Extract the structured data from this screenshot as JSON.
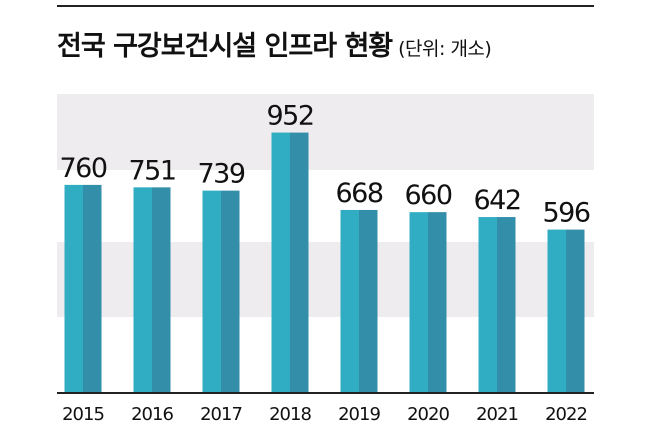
{
  "title": "전국 구강보건시설 인프라 현황",
  "unit": "(단위: 개소)",
  "colors": {
    "bar_left": "#31adc3",
    "bar_right": "#328ea9",
    "band": "#eeecee",
    "axis": "#222222"
  },
  "chart_data": {
    "type": "bar",
    "categories": [
      "2015",
      "2016",
      "2017",
      "2018",
      "2019",
      "2020",
      "2021",
      "2022"
    ],
    "values": [
      760,
      751,
      739,
      952,
      668,
      660,
      642,
      596
    ],
    "title": "전국 구강보건시설 인프라 현황",
    "xlabel": "",
    "ylabel": "",
    "ylim": [
      0,
      1000
    ],
    "grid": false,
    "legend": "none"
  }
}
